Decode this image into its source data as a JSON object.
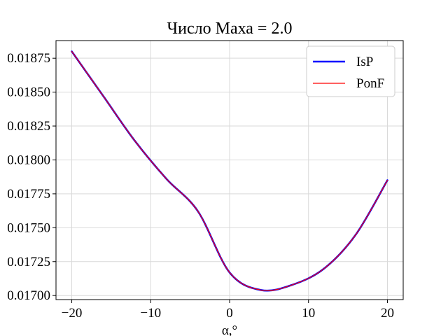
{
  "chart_data": {
    "type": "line",
    "title": "Число Маха = 2.0",
    "xlabel": "α,°",
    "ylabel": "",
    "xlim": [
      -22,
      22
    ],
    "ylim": [
      0.01697,
      0.01888
    ],
    "xticks": [
      -20,
      -10,
      0,
      10,
      20
    ],
    "xtick_labels": [
      "−20",
      "−10",
      "0",
      "10",
      "20"
    ],
    "yticks": [
      0.017,
      0.01725,
      0.0175,
      0.01775,
      0.018,
      0.01825,
      0.0185,
      0.01875
    ],
    "ytick_labels": [
      "0.01700",
      "0.01725",
      "0.01750",
      "0.01775",
      "0.01800",
      "0.01825",
      "0.01850",
      "0.01875"
    ],
    "grid": true,
    "legend_position": "top-right",
    "x": [
      -20,
      -16,
      -12,
      -8,
      -4,
      0,
      4,
      8,
      12,
      16,
      20
    ],
    "series": [
      {
        "name": "IsP",
        "color": "#0000ff",
        "line_style": "thick",
        "values": [
          0.0188,
          0.01847,
          0.01814,
          0.01786,
          0.01762,
          0.01717,
          0.01704,
          0.01708,
          0.0172,
          0.01745,
          0.01785
        ]
      },
      {
        "name": "PonF",
        "color": "#ff0000",
        "line_style": "thin",
        "values": [
          0.0188,
          0.01847,
          0.01814,
          0.01786,
          0.01762,
          0.01717,
          0.01704,
          0.01708,
          0.0172,
          0.01745,
          0.01785
        ]
      }
    ]
  }
}
